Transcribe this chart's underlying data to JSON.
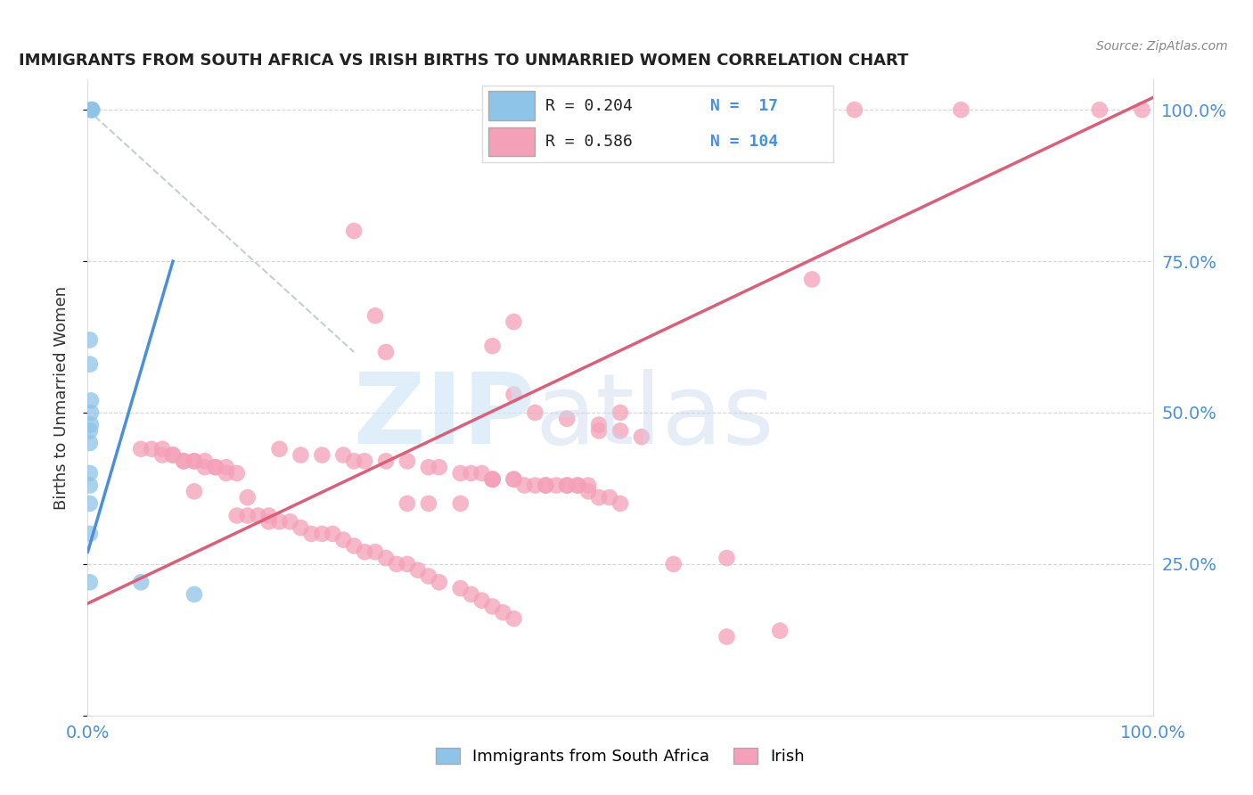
{
  "title": "IMMIGRANTS FROM SOUTH AFRICA VS IRISH BIRTHS TO UNMARRIED WOMEN CORRELATION CHART",
  "source": "Source: ZipAtlas.com",
  "ylabel": "Births to Unmarried Women",
  "legend_label1": "Immigrants from South Africa",
  "legend_label2": "Irish",
  "R1": 0.204,
  "N1": 17,
  "R2": 0.586,
  "N2": 104,
  "color_blue": "#8ec4e8",
  "color_pink": "#f4a0b8",
  "color_blue_line": "#4a90d9",
  "color_pink_line": "#d9607a",
  "color_gray_dash": "#b0b8c0",
  "blue_scatter_x": [
    0.003,
    0.004,
    0.004,
    0.002,
    0.002,
    0.003,
    0.003,
    0.003,
    0.002,
    0.002,
    0.002,
    0.002,
    0.002,
    0.002,
    0.002,
    0.05,
    0.1
  ],
  "blue_scatter_y": [
    1.0,
    1.0,
    1.0,
    0.62,
    0.58,
    0.52,
    0.5,
    0.48,
    0.47,
    0.45,
    0.4,
    0.38,
    0.35,
    0.3,
    0.22,
    0.22,
    0.2
  ],
  "pink_scatter_x": [
    0.55,
    0.72,
    0.82,
    0.99,
    0.95,
    0.05,
    0.06,
    0.07,
    0.07,
    0.08,
    0.08,
    0.09,
    0.09,
    0.1,
    0.1,
    0.11,
    0.11,
    0.12,
    0.12,
    0.13,
    0.13,
    0.14,
    0.14,
    0.15,
    0.16,
    0.17,
    0.17,
    0.18,
    0.19,
    0.2,
    0.21,
    0.22,
    0.23,
    0.24,
    0.25,
    0.26,
    0.27,
    0.28,
    0.29,
    0.3,
    0.31,
    0.32,
    0.33,
    0.35,
    0.36,
    0.37,
    0.38,
    0.39,
    0.4,
    0.41,
    0.42,
    0.43,
    0.44,
    0.45,
    0.46,
    0.47,
    0.48,
    0.49,
    0.5,
    0.55,
    0.6,
    0.65,
    0.68,
    0.4,
    0.38,
    0.4,
    0.42,
    0.45,
    0.48,
    0.48,
    0.5,
    0.52,
    0.1,
    0.15,
    0.18,
    0.2,
    0.22,
    0.24,
    0.25,
    0.26,
    0.28,
    0.3,
    0.32,
    0.35,
    0.38,
    0.4,
    0.3,
    0.32,
    0.35,
    0.33,
    0.36,
    0.37,
    0.38,
    0.38,
    0.4,
    0.43,
    0.45,
    0.46,
    0.47,
    0.25,
    0.27,
    0.28,
    0.5,
    0.6
  ],
  "pink_scatter_y": [
    1.0,
    1.0,
    1.0,
    1.0,
    1.0,
    0.44,
    0.44,
    0.44,
    0.43,
    0.43,
    0.43,
    0.42,
    0.42,
    0.42,
    0.42,
    0.42,
    0.41,
    0.41,
    0.41,
    0.41,
    0.4,
    0.4,
    0.33,
    0.33,
    0.33,
    0.33,
    0.32,
    0.32,
    0.32,
    0.31,
    0.3,
    0.3,
    0.3,
    0.29,
    0.28,
    0.27,
    0.27,
    0.26,
    0.25,
    0.25,
    0.24,
    0.23,
    0.22,
    0.21,
    0.2,
    0.19,
    0.18,
    0.17,
    0.16,
    0.38,
    0.38,
    0.38,
    0.38,
    0.38,
    0.38,
    0.37,
    0.36,
    0.36,
    0.35,
    0.25,
    0.13,
    0.14,
    0.72,
    0.65,
    0.61,
    0.53,
    0.5,
    0.49,
    0.48,
    0.47,
    0.47,
    0.46,
    0.37,
    0.36,
    0.44,
    0.43,
    0.43,
    0.43,
    0.42,
    0.42,
    0.42,
    0.42,
    0.41,
    0.4,
    0.39,
    0.39,
    0.35,
    0.35,
    0.35,
    0.41,
    0.4,
    0.4,
    0.39,
    0.39,
    0.39,
    0.38,
    0.38,
    0.38,
    0.38,
    0.8,
    0.66,
    0.6,
    0.5,
    0.26
  ],
  "blue_line_x0": 0.0,
  "blue_line_y0": 0.27,
  "blue_line_x1": 0.08,
  "blue_line_y1": 0.75,
  "pink_line_x0": 0.0,
  "pink_line_y0": 0.185,
  "pink_line_x1": 1.0,
  "pink_line_y1": 1.02,
  "gray_line_x0": 0.0,
  "gray_line_y0": 1.0,
  "gray_line_x1": 0.25,
  "gray_line_y1": 0.6,
  "xlim": [
    0.0,
    1.0
  ],
  "ylim": [
    0.0,
    1.05
  ],
  "yticks": [
    0.0,
    0.25,
    0.5,
    0.75,
    1.0
  ],
  "ytick_labels_right": [
    "25.0%",
    "50.0%",
    "75.0%",
    "100.0%"
  ],
  "xtick_labels": [
    "0.0%",
    "100.0%"
  ]
}
